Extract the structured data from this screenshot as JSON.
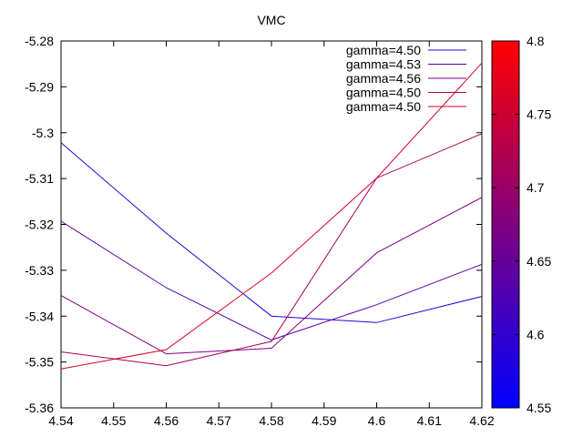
{
  "chart_data": {
    "type": "line",
    "title": "VMC",
    "xlabel": "",
    "ylabel": "",
    "xlim": [
      4.54,
      4.62
    ],
    "ylim": [
      -5.36,
      -5.28
    ],
    "x_ticks": [
      "4.54",
      "4.55",
      "4.56",
      "4.57",
      "4.58",
      "4.59",
      "4.6",
      "4.61",
      "4.62"
    ],
    "y_ticks": [
      "-5.28",
      "-5.29",
      "-5.3",
      "-5.31",
      "-5.32",
      "-5.33",
      "-5.34",
      "-5.35",
      "-5.36"
    ],
    "x": [
      4.54,
      4.56,
      4.58,
      4.6,
      4.62
    ],
    "series": [
      {
        "name": "gamma=4.50",
        "color": "#2a00d5",
        "values": [
          -5.3022,
          -5.3219,
          -5.34,
          -5.3414,
          -5.3357
        ]
      },
      {
        "name": "gamma=4.53",
        "color": "#5500aa",
        "values": [
          -5.3193,
          -5.3338,
          -5.3452,
          -5.3375,
          -5.3287
        ]
      },
      {
        "name": "gamma=4.56",
        "color": "#7f0080",
        "values": [
          -5.3355,
          -5.3482,
          -5.347,
          -5.3262,
          -5.3141
        ]
      },
      {
        "name": "gamma=4.50",
        "color": "#aa0055",
        "values": [
          -5.3478,
          -5.3508,
          -5.3455,
          -5.3099,
          -5.3002
        ]
      },
      {
        "name": "gamma=4.50",
        "color": "#d5002a",
        "values": [
          -5.3515,
          -5.3473,
          -5.3306,
          -5.3099,
          -5.2848
        ]
      }
    ],
    "legend_position": "top-right",
    "grid": false,
    "colorbar": {
      "min": 4.55,
      "max": 4.8,
      "color_low": "#0000ff",
      "color_high": "#ff0000",
      "ticks": [
        "4.8",
        "4.75",
        "4.7",
        "4.65",
        "4.6",
        "4.55"
      ]
    }
  }
}
